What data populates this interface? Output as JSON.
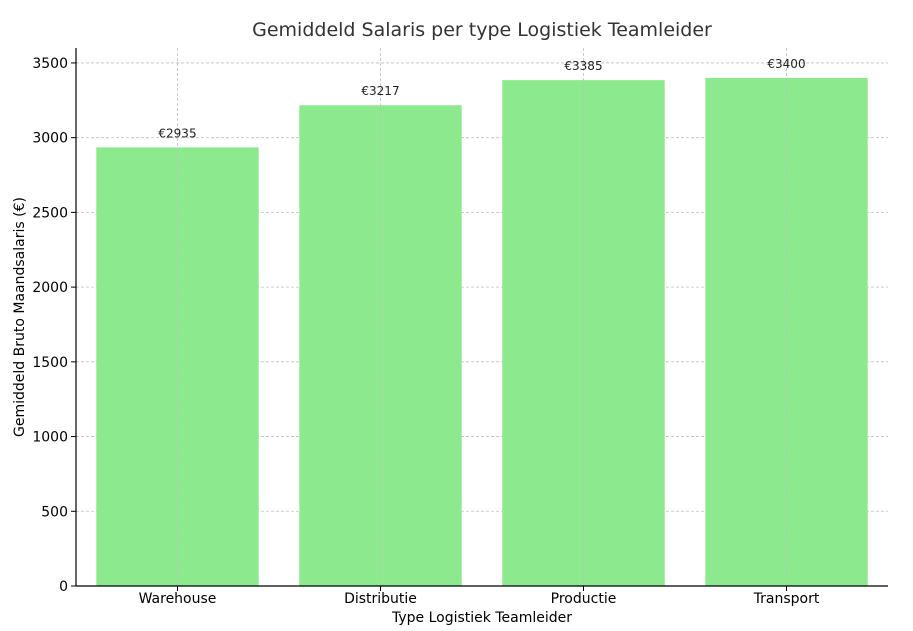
{
  "chart_data": {
    "type": "bar",
    "title": "Gemiddeld Salaris per type Logistiek Teamleider",
    "xlabel": "Type Logistiek Teamleider",
    "ylabel": "Gemiddeld Bruto Maandsalaris (€)",
    "categories": [
      "Warehouse",
      "Distributie",
      "Productie",
      "Transport"
    ],
    "values": [
      2935,
      3217,
      3385,
      3400
    ],
    "data_labels": [
      "€2935",
      "€3217",
      "€3385",
      "€3400"
    ],
    "ylim": [
      0,
      3600
    ],
    "yticks": [
      0,
      500,
      1000,
      1500,
      2000,
      2500,
      3000,
      3500
    ],
    "ytick_labels": [
      "0",
      "500",
      "1000",
      "1500",
      "2000",
      "2500",
      "3000",
      "3500"
    ],
    "grid": true,
    "bar_color": "#8de98d"
  }
}
